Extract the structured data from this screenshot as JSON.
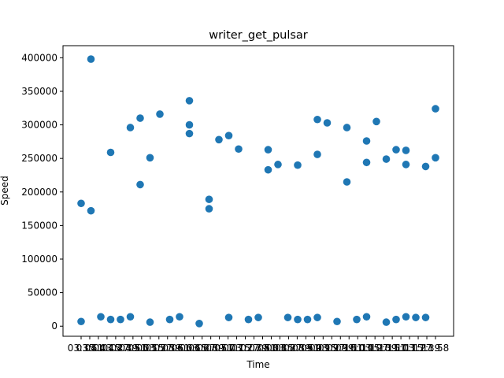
{
  "chart_data": {
    "type": "scatter",
    "title": "writer_get_pulsar",
    "xlabel": "Time",
    "ylabel": "Speed",
    "ylim": [
      -15000,
      418000
    ],
    "yticks": [
      0,
      50000,
      100000,
      150000,
      200000,
      250000,
      300000,
      350000,
      400000
    ],
    "ytick_labels": [
      "0",
      "50000",
      "100000",
      "150000",
      "200000",
      "250000",
      "300000",
      "350000",
      "400000"
    ],
    "grid": false,
    "legend": "none",
    "marker_color": "#1f77b4",
    "x_categories": [
      "03:35",
      "03:51",
      "04:03",
      "04:15",
      "04:27",
      "04:39",
      "04:51",
      "05:03",
      "05:15",
      "05:27",
      "05:39",
      "05:51",
      "06:03",
      "06:15",
      "06:27",
      "06:39",
      "06:51",
      "07:03",
      "07:15",
      "07:27",
      "07:39",
      "07:51",
      "08:03",
      "08:15",
      "08:27",
      "08:39",
      "08:51",
      "09:03",
      "09:15",
      "09:27",
      "09:39",
      "09:51",
      "10:03",
      "10:15",
      "10:27",
      "10:39",
      "10:51",
      "11:03",
      "11:15",
      "11:27",
      "11:39",
      "11:58"
    ],
    "points": [
      {
        "x": 0,
        "y": 183000
      },
      {
        "x": 0,
        "y": 7000
      },
      {
        "x": 1,
        "y": 398000
      },
      {
        "x": 1,
        "y": 172000
      },
      {
        "x": 2,
        "y": 14000
      },
      {
        "x": 3,
        "y": 259000
      },
      {
        "x": 3,
        "y": 10000
      },
      {
        "x": 4,
        "y": 10000
      },
      {
        "x": 5,
        "y": 296000
      },
      {
        "x": 5,
        "y": 14000
      },
      {
        "x": 6,
        "y": 310000
      },
      {
        "x": 6,
        "y": 211000
      },
      {
        "x": 7,
        "y": 251000
      },
      {
        "x": 7,
        "y": 6000
      },
      {
        "x": 8,
        "y": 316000
      },
      {
        "x": 9,
        "y": 10000
      },
      {
        "x": 10,
        "y": 14000
      },
      {
        "x": 11,
        "y": 336000
      },
      {
        "x": 11,
        "y": 300000
      },
      {
        "x": 11,
        "y": 287000
      },
      {
        "x": 12,
        "y": 4000
      },
      {
        "x": 13,
        "y": 189000
      },
      {
        "x": 13,
        "y": 175000
      },
      {
        "x": 14,
        "y": 278000
      },
      {
        "x": 15,
        "y": 284000
      },
      {
        "x": 15,
        "y": 13000
      },
      {
        "x": 16,
        "y": 264000
      },
      {
        "x": 17,
        "y": 10000
      },
      {
        "x": 18,
        "y": 13000
      },
      {
        "x": 19,
        "y": 263000
      },
      {
        "x": 19,
        "y": 233000
      },
      {
        "x": 20,
        "y": 241000
      },
      {
        "x": 21,
        "y": 13000
      },
      {
        "x": 22,
        "y": 240000
      },
      {
        "x": 22,
        "y": 10000
      },
      {
        "x": 23,
        "y": 10000
      },
      {
        "x": 24,
        "y": 308000
      },
      {
        "x": 24,
        "y": 256000
      },
      {
        "x": 24,
        "y": 13000
      },
      {
        "x": 25,
        "y": 303000
      },
      {
        "x": 26,
        "y": 7000
      },
      {
        "x": 27,
        "y": 296000
      },
      {
        "x": 27,
        "y": 215000
      },
      {
        "x": 28,
        "y": 10000
      },
      {
        "x": 29,
        "y": 276000
      },
      {
        "x": 29,
        "y": 244000
      },
      {
        "x": 29,
        "y": 14000
      },
      {
        "x": 30,
        "y": 305000
      },
      {
        "x": 31,
        "y": 249000
      },
      {
        "x": 31,
        "y": 6000
      },
      {
        "x": 32,
        "y": 263000
      },
      {
        "x": 32,
        "y": 10000
      },
      {
        "x": 33,
        "y": 262000
      },
      {
        "x": 33,
        "y": 241000
      },
      {
        "x": 33,
        "y": 14000
      },
      {
        "x": 34,
        "y": 13000
      },
      {
        "x": 35,
        "y": 238000
      },
      {
        "x": 35,
        "y": 13000
      },
      {
        "x": 36,
        "y": 324000
      },
      {
        "x": 36,
        "y": 251000
      }
    ]
  }
}
